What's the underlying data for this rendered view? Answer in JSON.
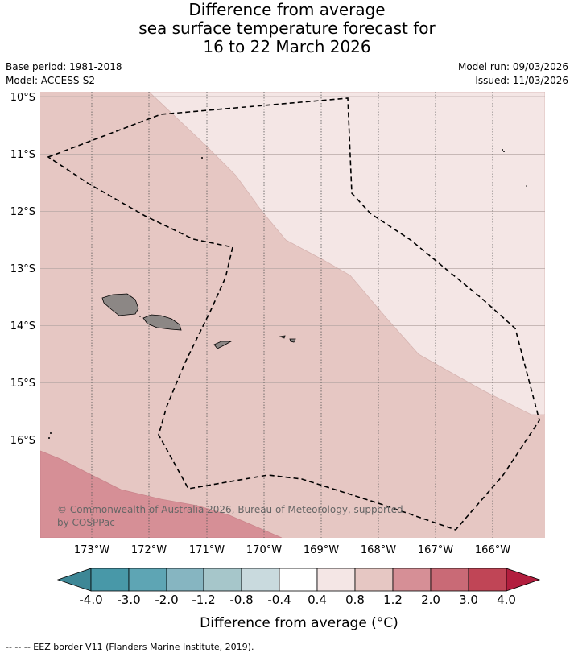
{
  "header": {
    "title_line1": "Difference from average",
    "title_line2": "sea surface temperature forecast for",
    "title_line3": "16 to 22 March 2026",
    "base_period": "Base period: 1981-2018",
    "model": "Model: ACCESS-S2",
    "model_run": "Model run: 09/03/2026",
    "issued": "Issued: 11/03/2026"
  },
  "map": {
    "lat_labels": [
      "10°S",
      "11°S",
      "12°S",
      "13°S",
      "14°S",
      "15°S",
      "16°S"
    ],
    "lon_labels": [
      "173°W",
      "172°W",
      "171°W",
      "170°W",
      "169°W",
      "168°W",
      "167°W",
      "166°W"
    ],
    "copyright_line1": "© Commonwealth of Australia 2026, Bureau of Meteorology, supported",
    "copyright_line2": "by COSPPac",
    "anomaly_regions": [
      {
        "region": "north-east",
        "anomaly_range": "0.4 to 0.8",
        "color": "#f4e6e5"
      },
      {
        "region": "central",
        "anomaly_range": "0.8 to 1.2",
        "color": "#e6c7c3"
      },
      {
        "region": "south-west",
        "anomaly_range": "1.2 to 2.0",
        "color": "#d68f96"
      }
    ]
  },
  "colorbar": {
    "labels": [
      "-4.0",
      "-3.0",
      "-2.0",
      "-1.2",
      "-0.8",
      "-0.4",
      "0.4",
      "0.8",
      "1.2",
      "2.0",
      "3.0",
      "4.0"
    ],
    "colors": [
      "#4898a8",
      "#5ea5b4",
      "#86b5c1",
      "#a6c6ca",
      "#c9dade",
      "#ffffff",
      "#f4e6e5",
      "#e6c7c3",
      "#d68f96",
      "#c96a76",
      "#c04556"
    ],
    "under_color": "#3d8796",
    "over_color": "#b21e3e",
    "title": "Difference from average (°C)"
  },
  "footer": {
    "eez_legend": "--  --  -- EEZ border V11 (Flanders Marine Institute, 2019)."
  }
}
